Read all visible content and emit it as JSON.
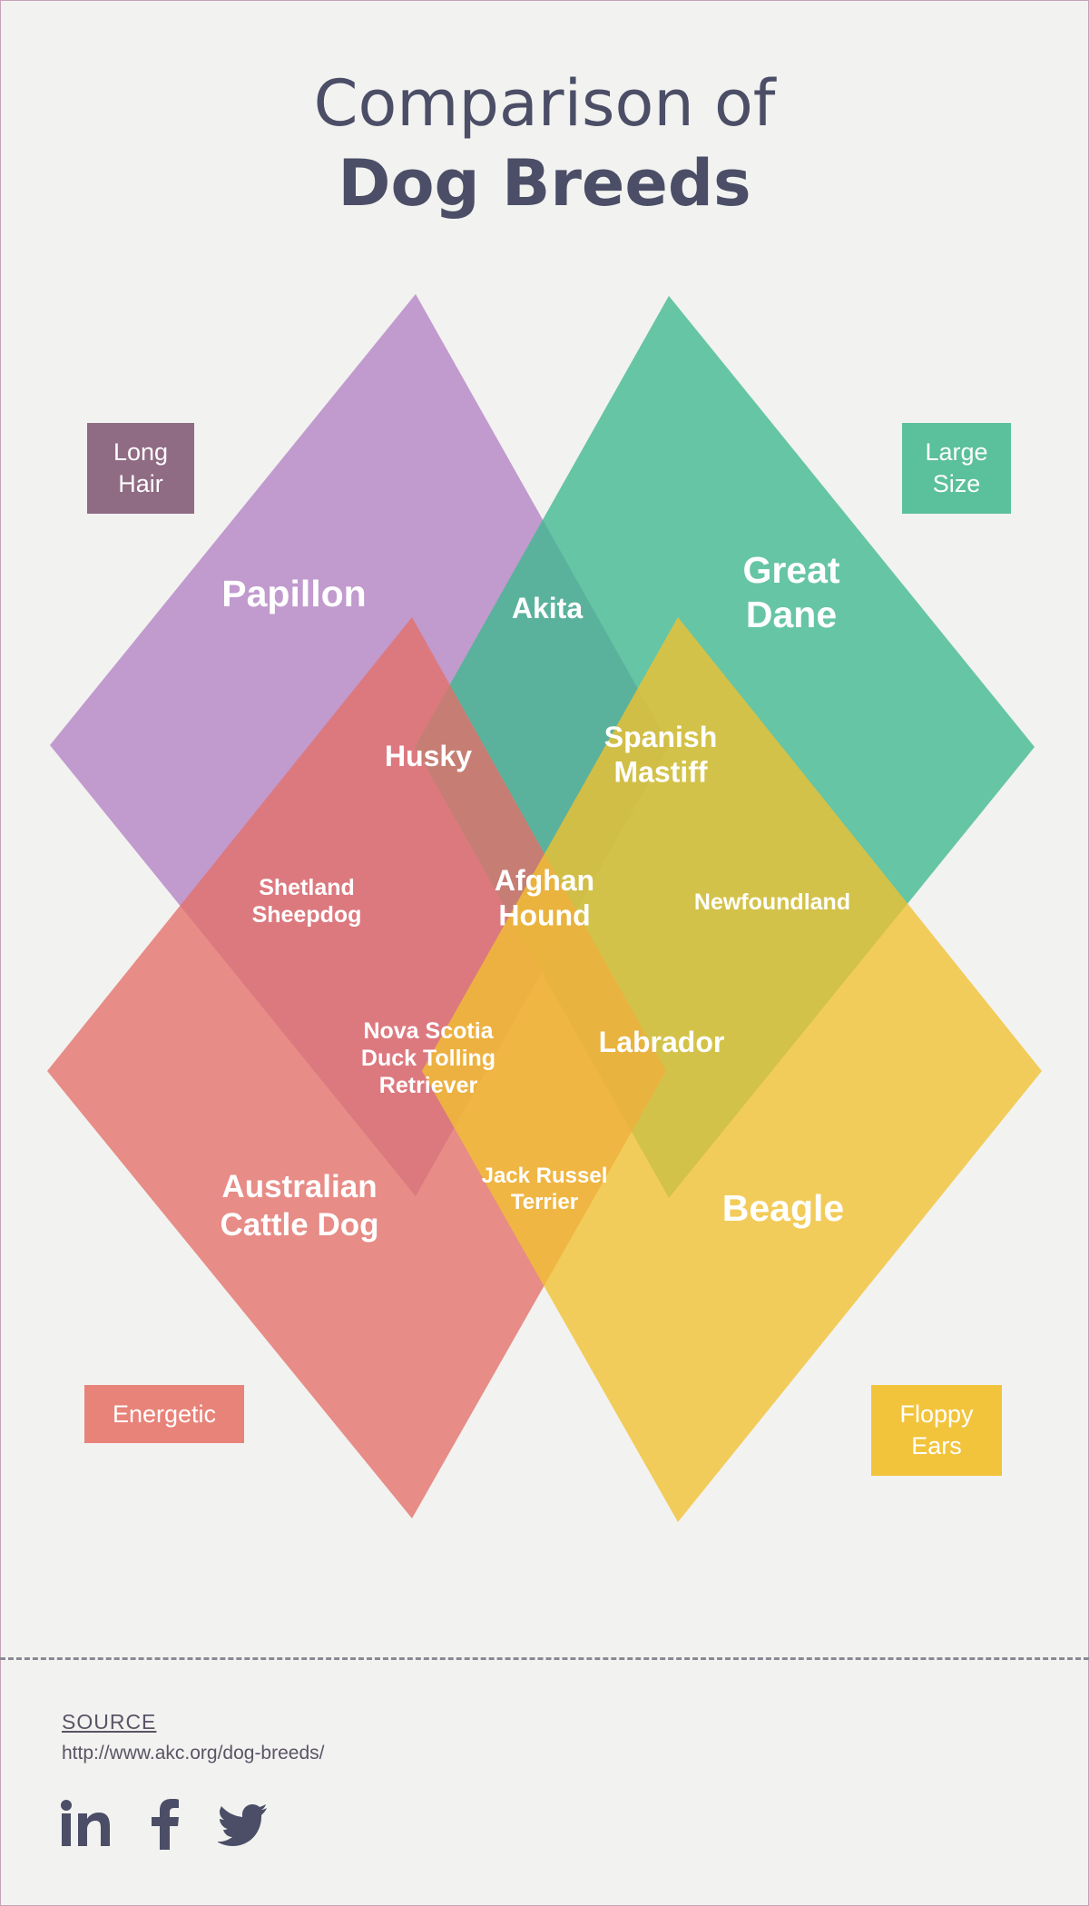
{
  "title": {
    "line1": "Comparison of",
    "line2": "Dog Breeds"
  },
  "colors": {
    "long_hair": "#b382c4",
    "large_size": "#3fb98e",
    "energetic": "#e46f69",
    "floppy_ears": "#f2c12f",
    "text_dark": "#4b4e66"
  },
  "categories": {
    "long_hair": {
      "label": "Long\nHair",
      "bg": "#906b84"
    },
    "large_size": {
      "label": "Large\nSize",
      "bg": "#5bc09c"
    },
    "energetic": {
      "label": "Energetic",
      "bg": "#e88379"
    },
    "floppy_ears": {
      "label": "Floppy\nEars",
      "bg": "#f2c43c"
    }
  },
  "breeds": {
    "papillon": "Papillon",
    "akita": "Akita",
    "great_dane": [
      "Great",
      "Dane"
    ],
    "husky": "Husky",
    "spanish_mastiff": [
      "Spanish",
      "Mastiff"
    ],
    "shetland_sheepdog": [
      "Shetland",
      "Sheepdog"
    ],
    "afghan_hound": [
      "Afghan",
      "Hound"
    ],
    "newfoundland": "Newfoundland",
    "nova_scotia": [
      "Nova Scotia",
      "Duck Tolling",
      "Retriever"
    ],
    "labrador": "Labrador",
    "australian_cattle_dog": [
      "Australian",
      "Cattle Dog"
    ],
    "jack_russel_terrier": [
      "Jack Russel",
      "Terrier"
    ],
    "beagle": "Beagle"
  },
  "source": {
    "title": "SOURCE",
    "url": "http://www.akc.org/dog-breeds/"
  },
  "social": [
    "linkedin-icon",
    "facebook-icon",
    "twitter-icon"
  ]
}
